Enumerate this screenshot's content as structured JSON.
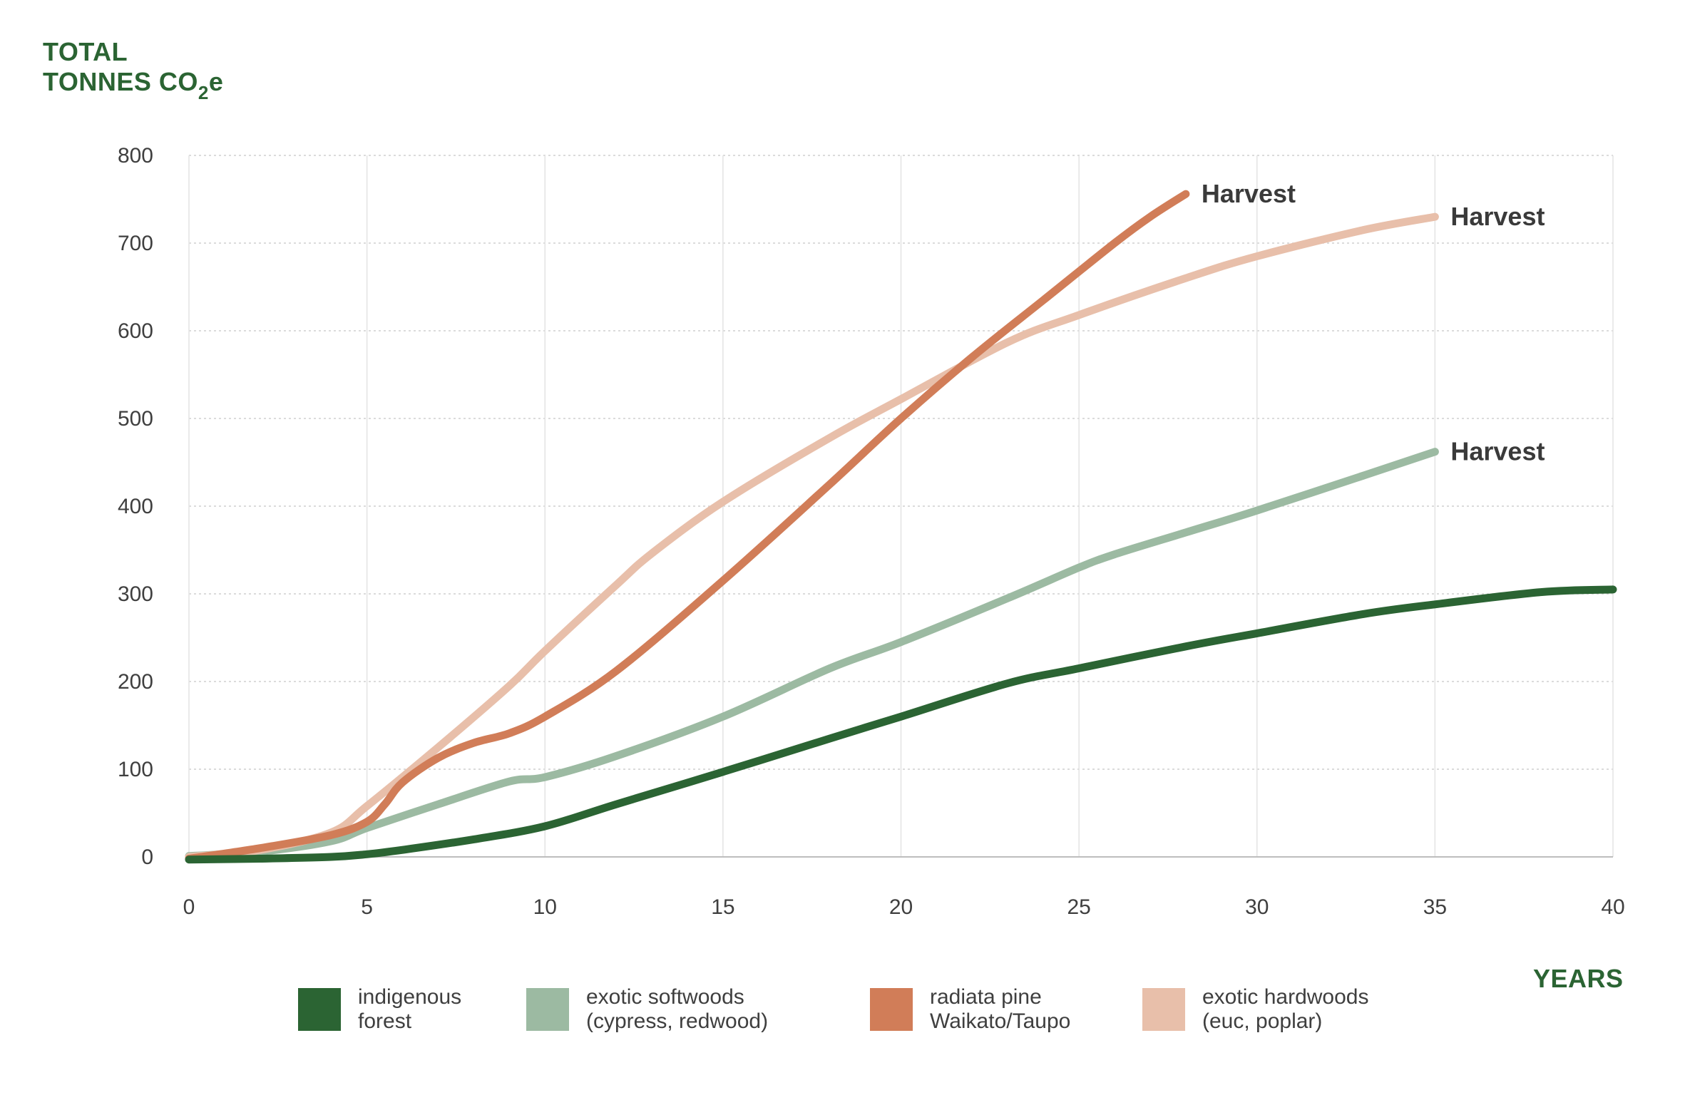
{
  "y_axis_title": {
    "line1": "TOTAL",
    "line2_prefix": "TONNES CO",
    "line2_sub": "2",
    "line2_suffix": "e"
  },
  "x_axis_title": "YEARS",
  "chart_data": {
    "type": "line",
    "title": "",
    "xlabel": "YEARS",
    "ylabel": "TOTAL TONNES CO2e",
    "xlim": [
      0,
      40
    ],
    "ylim": [
      0,
      800
    ],
    "x_ticks": [
      0,
      5,
      10,
      15,
      20,
      25,
      30,
      35,
      40
    ],
    "x_tick_labels": [
      "0",
      "5",
      "10",
      "15",
      "20",
      "25",
      "30",
      "35",
      "40"
    ],
    "y_ticks": [
      0,
      100,
      200,
      300,
      400,
      500,
      600,
      700,
      800
    ],
    "y_tick_labels": [
      "0",
      "100",
      "200",
      "300",
      "400",
      "500",
      "600",
      "700",
      "800"
    ],
    "grid": true,
    "legend_position": "bottom",
    "series": [
      {
        "name": "indigenous forest",
        "legend_line1": "indigenous",
        "legend_line2": "forest",
        "color": "#2b6433",
        "points": [
          [
            0,
            -3
          ],
          [
            2,
            -2
          ],
          [
            4,
            0
          ],
          [
            5,
            3
          ],
          [
            6,
            8
          ],
          [
            8,
            20
          ],
          [
            10,
            35
          ],
          [
            12,
            60
          ],
          [
            15,
            97
          ],
          [
            18,
            135
          ],
          [
            20,
            160
          ],
          [
            23,
            198
          ],
          [
            25,
            215
          ],
          [
            28,
            240
          ],
          [
            30,
            255
          ],
          [
            33,
            277
          ],
          [
            35,
            288
          ],
          [
            38,
            302
          ],
          [
            40,
            305
          ]
        ]
      },
      {
        "name": "exotic softwoods (cypress, redwood)",
        "legend_line1": "exotic softwoods",
        "legend_line2": "(cypress, redwood)",
        "color": "#9cbaa2",
        "annotation": "Harvest",
        "points": [
          [
            0,
            1
          ],
          [
            2,
            6
          ],
          [
            4,
            18
          ],
          [
            5,
            33
          ],
          [
            7,
            60
          ],
          [
            9,
            86
          ],
          [
            10,
            91
          ],
          [
            12,
            115
          ],
          [
            15,
            160
          ],
          [
            18,
            215
          ],
          [
            20,
            245
          ],
          [
            23,
            295
          ],
          [
            25,
            330
          ],
          [
            26,
            345
          ],
          [
            28,
            370
          ],
          [
            30,
            395
          ],
          [
            33,
            435
          ],
          [
            35,
            462
          ]
        ]
      },
      {
        "name": "radiata pine Waikato/Taupo",
        "legend_line1": "radiata pine",
        "legend_line2": "Waikato/Taupo",
        "color": "#d17d58",
        "annotation": "Harvest",
        "points": [
          [
            0,
            -2
          ],
          [
            2,
            10
          ],
          [
            4,
            25
          ],
          [
            5,
            40
          ],
          [
            5.5,
            60
          ],
          [
            6,
            85
          ],
          [
            7,
            113
          ],
          [
            8,
            130
          ],
          [
            9,
            141
          ],
          [
            10,
            160
          ],
          [
            12,
            212
          ],
          [
            15,
            315
          ],
          [
            18,
            425
          ],
          [
            20,
            500
          ],
          [
            22,
            570
          ],
          [
            24,
            635
          ],
          [
            26,
            700
          ],
          [
            27,
            730
          ],
          [
            28,
            756
          ]
        ]
      },
      {
        "name": "exotic hardwoods (euc, poplar)",
        "legend_line1": "exotic hardwoods",
        "legend_line2": "(euc, poplar)",
        "color": "#e8bfaa",
        "annotation": "Harvest",
        "points": [
          [
            0,
            0
          ],
          [
            2,
            8
          ],
          [
            4,
            28
          ],
          [
            5,
            58
          ],
          [
            7,
            125
          ],
          [
            9,
            195
          ],
          [
            10,
            235
          ],
          [
            12,
            310
          ],
          [
            13,
            346
          ],
          [
            15,
            405
          ],
          [
            18,
            478
          ],
          [
            20,
            522
          ],
          [
            23,
            587
          ],
          [
            25,
            618
          ],
          [
            28,
            660
          ],
          [
            30,
            685
          ],
          [
            33,
            715
          ],
          [
            35,
            730
          ]
        ]
      }
    ]
  }
}
